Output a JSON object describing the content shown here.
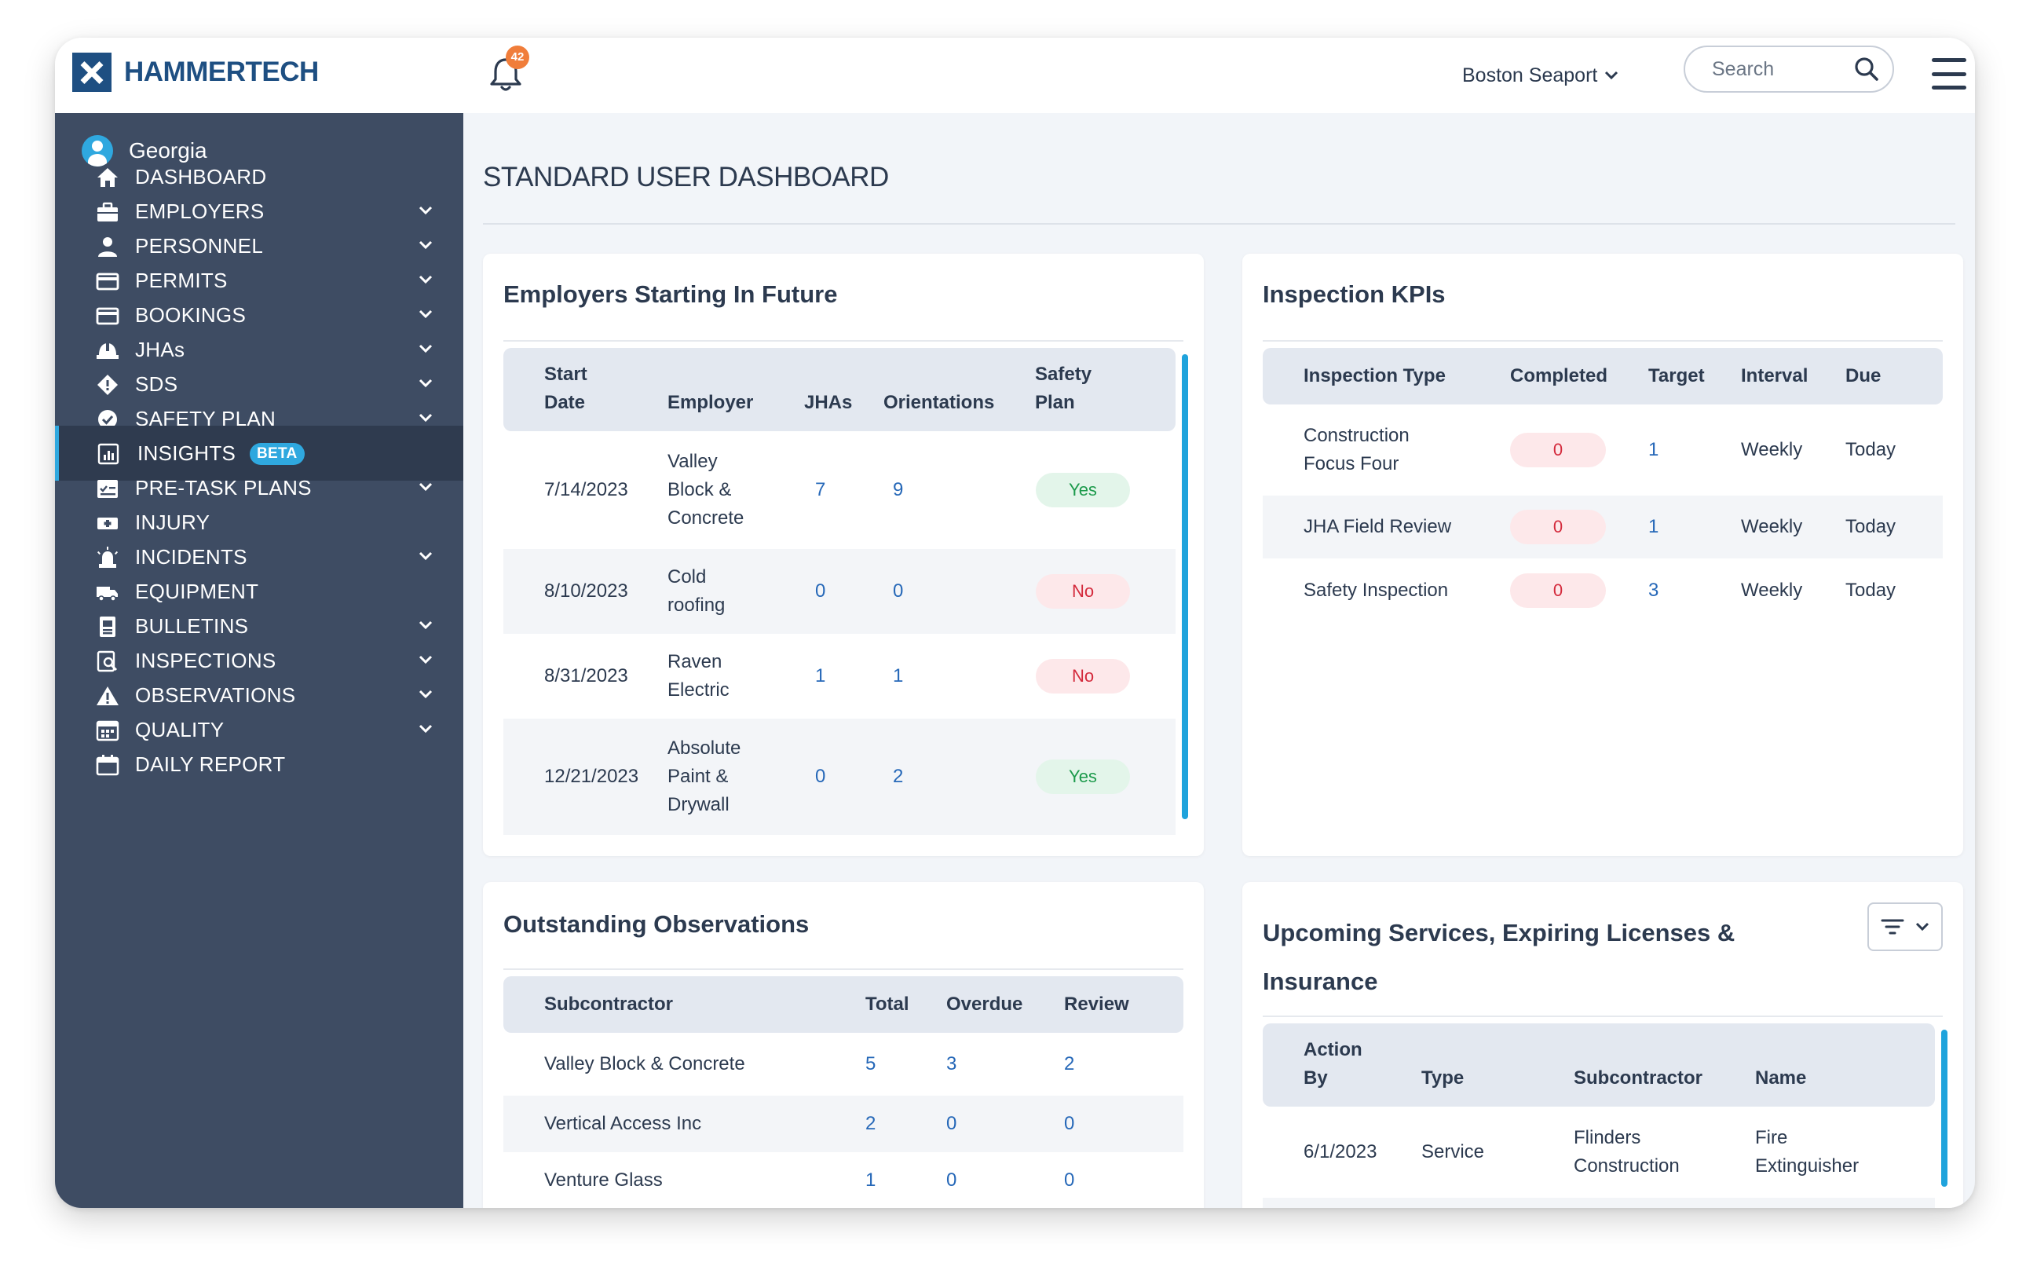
{
  "brand": {
    "name": "HAMMERTECH"
  },
  "header": {
    "notification_count": "42",
    "site": "Boston Seaport",
    "search_placeholder": "Search"
  },
  "sidebar": {
    "user": "Georgia",
    "items": [
      {
        "label": "DASHBOARD",
        "icon": "home-icon"
      },
      {
        "label": "EMPLOYERS",
        "icon": "briefcase-icon",
        "expandable": true
      },
      {
        "label": "PERSONNEL",
        "icon": "person-icon",
        "expandable": true
      },
      {
        "label": "PERMITS",
        "icon": "card-icon",
        "expandable": true
      },
      {
        "label": "BOOKINGS",
        "icon": "card-icon",
        "expandable": true
      },
      {
        "label": "JHAs",
        "icon": "hardhat-icon",
        "expandable": true
      },
      {
        "label": "SDS",
        "icon": "diamond-icon",
        "expandable": true
      },
      {
        "label": "SAFETY PLAN",
        "icon": "check-circle-icon",
        "expandable": true
      },
      {
        "label": "INSIGHTS",
        "icon": "bar-chart-icon",
        "badge": "BETA",
        "active": true
      },
      {
        "label": "PRE-TASK PLANS",
        "icon": "checklist-icon",
        "expandable": true
      },
      {
        "label": "INJURY",
        "icon": "first-aid-icon"
      },
      {
        "label": "INCIDENTS",
        "icon": "siren-icon",
        "expandable": true
      },
      {
        "label": "EQUIPMENT",
        "icon": "truck-icon"
      },
      {
        "label": "BULLETINS",
        "icon": "bulletin-icon",
        "expandable": true
      },
      {
        "label": "INSPECTIONS",
        "icon": "inspect-icon",
        "expandable": true
      },
      {
        "label": "OBSERVATIONS",
        "icon": "warning-icon",
        "expandable": true
      },
      {
        "label": "QUALITY",
        "icon": "quality-icon",
        "expandable": true
      },
      {
        "label": "DAILY REPORT",
        "icon": "calendar-icon"
      }
    ]
  },
  "page": {
    "title": "STANDARD USER DASHBOARD"
  },
  "employers_card": {
    "title": "Employers Starting In Future",
    "columns": [
      "Start Date",
      "Employer",
      "JHAs",
      "Orientations",
      "Safety Plan"
    ],
    "col_lines": [
      [
        "Start",
        "Date"
      ],
      [
        "Employer"
      ],
      [
        "JHAs"
      ],
      [
        "Orientations"
      ],
      [
        "Safety",
        "Plan"
      ]
    ],
    "rows": [
      {
        "start": "7/14/2023",
        "employer": [
          "Valley",
          "Block &",
          "Concrete"
        ],
        "jhas": "7",
        "orientations": "9",
        "safety_plan": "Yes"
      },
      {
        "start": "8/10/2023",
        "employer": [
          "Cold",
          "roofing"
        ],
        "jhas": "0",
        "orientations": "0",
        "safety_plan": "No"
      },
      {
        "start": "8/31/2023",
        "employer": [
          "Raven",
          "Electric"
        ],
        "jhas": "1",
        "orientations": "1",
        "safety_plan": "No"
      },
      {
        "start": "12/21/2023",
        "employer": [
          "Absolute",
          "Paint &",
          "Drywall"
        ],
        "jhas": "0",
        "orientations": "2",
        "safety_plan": "Yes"
      }
    ]
  },
  "kpi_card": {
    "title": "Inspection KPIs",
    "columns": [
      "Inspection Type",
      "Completed",
      "Target",
      "Interval",
      "Due"
    ],
    "rows": [
      {
        "type": [
          "Construction",
          "Focus Four"
        ],
        "completed": "0",
        "target": "1",
        "interval": "Weekly",
        "due": "Today"
      },
      {
        "type": [
          "JHA Field Review"
        ],
        "completed": "0",
        "target": "1",
        "interval": "Weekly",
        "due": "Today"
      },
      {
        "type": [
          "Safety Inspection"
        ],
        "completed": "0",
        "target": "3",
        "interval": "Weekly",
        "due": "Today"
      }
    ]
  },
  "observations_card": {
    "title": "Outstanding Observations",
    "columns": [
      "Subcontractor",
      "Total",
      "Overdue",
      "Review"
    ],
    "rows": [
      {
        "sub": "Valley Block & Concrete",
        "total": "5",
        "overdue": "3",
        "review": "2"
      },
      {
        "sub": "Vertical Access Inc",
        "total": "2",
        "overdue": "0",
        "review": "0"
      },
      {
        "sub": "Venture Glass",
        "total": "1",
        "overdue": "0",
        "review": "0"
      }
    ]
  },
  "services_card": {
    "title_lines": [
      "Upcoming Services, Expiring Licenses &",
      "Insurance"
    ],
    "col_lines": [
      [
        "Action",
        "By"
      ],
      [
        "Type"
      ],
      [
        "Subcontractor"
      ],
      [
        "Name"
      ]
    ],
    "rows": [
      {
        "action_by": "6/1/2023",
        "type": "Service",
        "sub": [
          "Flinders",
          "Construction"
        ],
        "name": [
          "Fire",
          "Extinguisher"
        ]
      }
    ]
  },
  "colors": {
    "sidebar": "#3e4c63",
    "accent": "#2fa8df",
    "brand": "#1e4f82",
    "link": "#2668b8"
  }
}
